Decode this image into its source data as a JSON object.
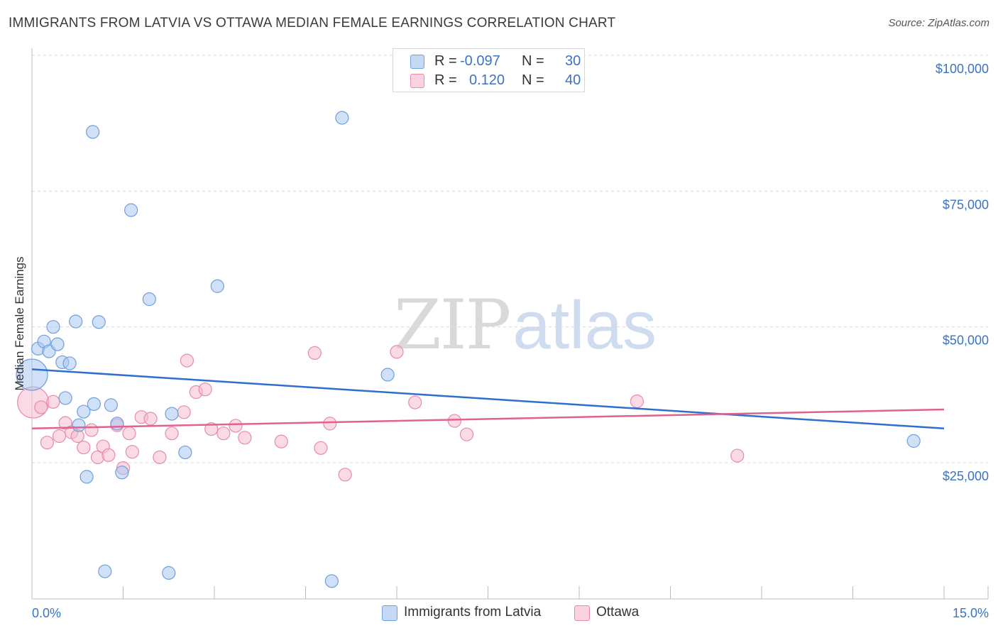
{
  "header": {
    "title": "IMMIGRANTS FROM LATVIA VS OTTAWA MEDIAN FEMALE EARNINGS CORRELATION CHART",
    "source": "Source: ZipAtlas.com"
  },
  "watermark": {
    "part1": "ZIP",
    "part2": "atlas"
  },
  "legend": {
    "rows": [
      {
        "r_label": "R =",
        "r_value": "-0.097",
        "n_label": "N =",
        "n_value": "30"
      },
      {
        "r_label": "R =",
        "r_value": "0.120",
        "n_label": "N =",
        "n_value": "40"
      }
    ]
  },
  "bottom_legend": {
    "items": [
      {
        "label": "Immigrants from Latvia"
      },
      {
        "label": "Ottawa"
      }
    ]
  },
  "colors": {
    "blue_fill": "#a9c7ef",
    "blue_stroke": "#6f9fdc",
    "blue_line": "#2f6fcf",
    "pink_fill": "#f6bcd0",
    "pink_stroke": "#e88aab",
    "pink_line": "#e0628f",
    "tick_text": "#3b72c4",
    "grid": "#d9d9d9"
  },
  "chart_data": {
    "type": "scatter",
    "title": "IMMIGRANTS FROM LATVIA VS OTTAWA MEDIAN FEMALE EARNINGS CORRELATION CHART",
    "xlabel": "",
    "ylabel": "Median Female Earnings",
    "xlim": [
      0,
      15
    ],
    "ylim": [
      0,
      105000
    ],
    "x_tick_labels": [
      "0.0%",
      "15.0%"
    ],
    "y_ticks": [
      25000,
      50000,
      75000,
      100000
    ],
    "y_tick_labels": [
      "$25,000",
      "$50,000",
      "$75,000",
      "$100,000"
    ],
    "grid": true,
    "legend_position": "top-center",
    "series": [
      {
        "name": "Immigrants from Latvia",
        "color": "#a9c7ef",
        "r": -0.097,
        "n": 30,
        "trend": {
          "x": [
            0,
            15
          ],
          "y": [
            42200,
            31300
          ]
        },
        "points": [
          {
            "x": 0.0,
            "y": 41200,
            "big": true
          },
          {
            "x": 0.1,
            "y": 46000
          },
          {
            "x": 0.2,
            "y": 47300
          },
          {
            "x": 0.28,
            "y": 45500
          },
          {
            "x": 0.35,
            "y": 50000
          },
          {
            "x": 0.42,
            "y": 46800
          },
          {
            "x": 0.5,
            "y": 43500
          },
          {
            "x": 0.62,
            "y": 43300
          },
          {
            "x": 0.55,
            "y": 36900
          },
          {
            "x": 0.72,
            "y": 51000
          },
          {
            "x": 0.77,
            "y": 31900
          },
          {
            "x": 0.85,
            "y": 34400
          },
          {
            "x": 0.9,
            "y": 22400
          },
          {
            "x": 1.0,
            "y": 85900
          },
          {
            "x": 1.02,
            "y": 35800
          },
          {
            "x": 1.1,
            "y": 50900
          },
          {
            "x": 1.2,
            "y": 5000
          },
          {
            "x": 1.3,
            "y": 35600
          },
          {
            "x": 1.4,
            "y": 32200
          },
          {
            "x": 1.48,
            "y": 23200
          },
          {
            "x": 1.63,
            "y": 71500
          },
          {
            "x": 1.93,
            "y": 55100
          },
          {
            "x": 2.25,
            "y": 4700
          },
          {
            "x": 2.3,
            "y": 34000
          },
          {
            "x": 2.52,
            "y": 26900
          },
          {
            "x": 3.05,
            "y": 57500
          },
          {
            "x": 4.93,
            "y": 3200
          },
          {
            "x": 5.1,
            "y": 88500
          },
          {
            "x": 5.85,
            "y": 41200
          },
          {
            "x": 14.5,
            "y": 29000
          }
        ]
      },
      {
        "name": "Ottawa",
        "color": "#f6bcd0",
        "r": 0.12,
        "n": 40,
        "trend": {
          "x": [
            0,
            15
          ],
          "y": [
            31300,
            34800
          ]
        },
        "points": [
          {
            "x": 0.02,
            "y": 36100,
            "big": true
          },
          {
            "x": 0.15,
            "y": 35200
          },
          {
            "x": 0.25,
            "y": 28700
          },
          {
            "x": 0.35,
            "y": 36200
          },
          {
            "x": 0.45,
            "y": 29900
          },
          {
            "x": 0.55,
            "y": 32300
          },
          {
            "x": 0.65,
            "y": 30600
          },
          {
            "x": 0.75,
            "y": 29900
          },
          {
            "x": 0.85,
            "y": 27800
          },
          {
            "x": 0.98,
            "y": 31000
          },
          {
            "x": 1.08,
            "y": 26000
          },
          {
            "x": 1.17,
            "y": 28000
          },
          {
            "x": 1.26,
            "y": 26400
          },
          {
            "x": 1.4,
            "y": 31900
          },
          {
            "x": 1.5,
            "y": 24000
          },
          {
            "x": 1.6,
            "y": 30400
          },
          {
            "x": 1.65,
            "y": 27000
          },
          {
            "x": 1.8,
            "y": 33400
          },
          {
            "x": 1.95,
            "y": 33100
          },
          {
            "x": 2.1,
            "y": 26000
          },
          {
            "x": 2.3,
            "y": 30400
          },
          {
            "x": 2.5,
            "y": 34300
          },
          {
            "x": 2.55,
            "y": 43800
          },
          {
            "x": 2.7,
            "y": 38000
          },
          {
            "x": 2.85,
            "y": 38500
          },
          {
            "x": 2.95,
            "y": 31200
          },
          {
            "x": 3.15,
            "y": 30400
          },
          {
            "x": 3.35,
            "y": 31800
          },
          {
            "x": 3.5,
            "y": 29600
          },
          {
            "x": 4.1,
            "y": 28900
          },
          {
            "x": 4.65,
            "y": 45200
          },
          {
            "x": 4.75,
            "y": 27700
          },
          {
            "x": 4.9,
            "y": 32200
          },
          {
            "x": 5.15,
            "y": 22800
          },
          {
            "x": 6.0,
            "y": 45400
          },
          {
            "x": 6.3,
            "y": 36100
          },
          {
            "x": 6.95,
            "y": 32700
          },
          {
            "x": 7.15,
            "y": 30200
          },
          {
            "x": 9.95,
            "y": 36300
          },
          {
            "x": 11.6,
            "y": 26300
          }
        ]
      }
    ]
  }
}
